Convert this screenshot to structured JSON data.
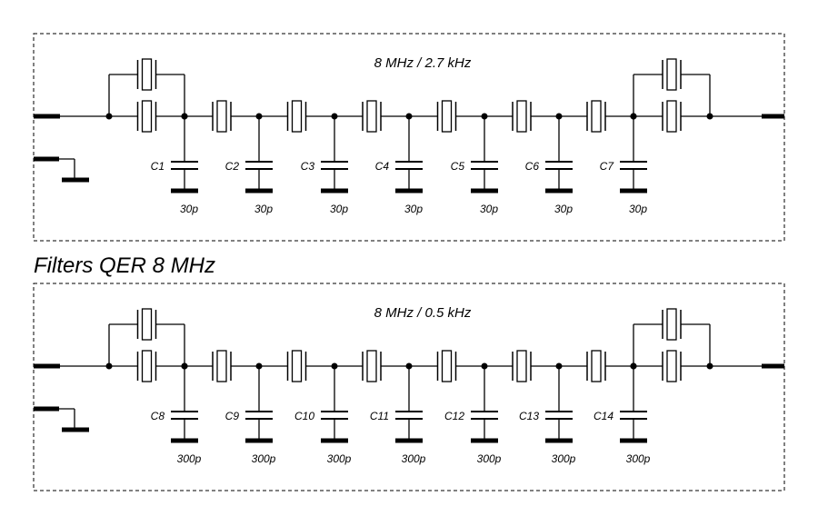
{
  "title": "Filters QER 8 MHz",
  "panels": [
    {
      "title": "8 MHz / 2.7 kHz",
      "capacitors": [
        {
          "name": "C1",
          "value": "30p"
        },
        {
          "name": "C2",
          "value": "30p"
        },
        {
          "name": "C3",
          "value": "30p"
        },
        {
          "name": "C4",
          "value": "30p"
        },
        {
          "name": "C5",
          "value": "30p"
        },
        {
          "name": "C6",
          "value": "30p"
        },
        {
          "name": "C7",
          "value": "30p"
        }
      ]
    },
    {
      "title": "8 MHz / 0.5 kHz",
      "capacitors": [
        {
          "name": "C8",
          "value": "300p"
        },
        {
          "name": "C9",
          "value": "300p"
        },
        {
          "name": "C10",
          "value": "300p"
        },
        {
          "name": "C11",
          "value": "300p"
        },
        {
          "name": "C12",
          "value": "300p"
        },
        {
          "name": "C13",
          "value": "300p"
        },
        {
          "name": "C14",
          "value": "300p"
        }
      ]
    }
  ]
}
